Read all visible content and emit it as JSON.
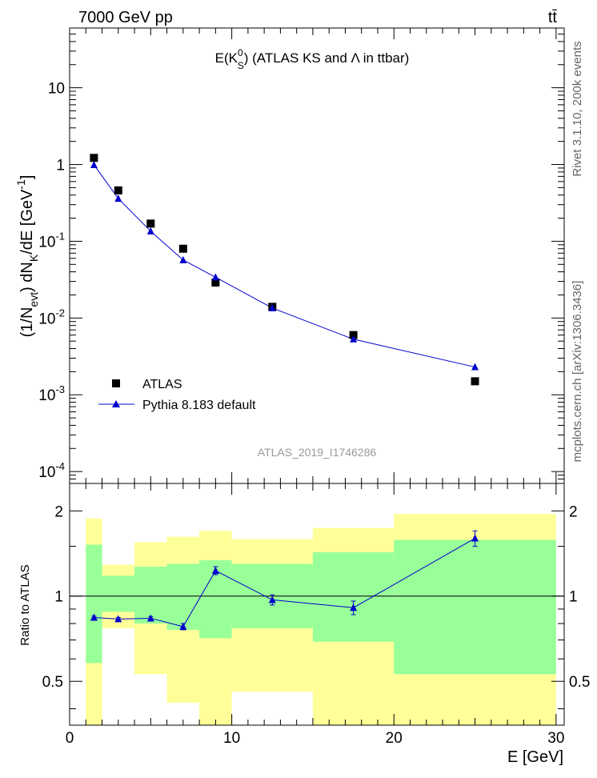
{
  "header": {
    "energy_label": "7000 GeV pp",
    "process_label": "tt̄"
  },
  "side_labels": {
    "rivet": "Rivet 3.1.10, 200k events",
    "mcplots": "mcplots.cern.ch [arXiv:1306.3436]"
  },
  "chart_data": [
    {
      "type": "scatter",
      "title_parts": {
        "pre": "E(K",
        "sup": "0",
        "sub": "S",
        "post": ") (ATLAS KS and Λ in ttbar)"
      },
      "ylabel_parts": {
        "pre": "(1/N",
        "sub1": "evt",
        "mid": ") dN",
        "sub2": "K",
        "post": "/dE [GeV",
        "sup": "-1",
        "end": "]"
      },
      "analysis_id": "ATLAS_2019_I1746286",
      "x_range": [
        0,
        30.5
      ],
      "y_scale": "log",
      "y_range": [
        7e-05,
        60
      ],
      "y_ticks": [
        {
          "value": 0.0001,
          "base": "10",
          "exp": "-4"
        },
        {
          "value": 0.001,
          "base": "10",
          "exp": "-3"
        },
        {
          "value": 0.01,
          "base": "10",
          "exp": "-2"
        },
        {
          "value": 0.1,
          "base": "10",
          "exp": "-1"
        },
        {
          "value": 1,
          "base": "1",
          "exp": ""
        },
        {
          "value": 10,
          "base": "10",
          "exp": ""
        }
      ],
      "legend_position": "bottom-left",
      "series": [
        {
          "name": "ATLAS",
          "marker": "square",
          "color": "#000000",
          "x": [
            1.5,
            3,
            5,
            7,
            9,
            12.5,
            17.5,
            25
          ],
          "y": [
            1.22,
            0.46,
            0.17,
            0.08,
            0.029,
            0.014,
            0.006,
            0.0015
          ]
        },
        {
          "name": "Pythia 8.183 default",
          "marker": "triangle",
          "color": "#0000cc",
          "x": [
            1.5,
            3,
            5,
            7,
            9,
            12.5,
            17.5,
            25
          ],
          "y": [
            0.99,
            0.36,
            0.135,
            0.057,
            0.034,
            0.0135,
            0.0053,
            0.0023
          ]
        }
      ]
    },
    {
      "type": "line",
      "ylabel": "Ratio to ATLAS",
      "xlabel": "E [GeV]",
      "x_range": [
        0,
        30.5
      ],
      "y_scale": "log",
      "y_range": [
        0.35,
        2.5
      ],
      "y_ticks": [
        {
          "value": 0.5,
          "label": "0.5"
        },
        {
          "value": 1,
          "label": "1"
        },
        {
          "value": 2,
          "label": "2"
        }
      ],
      "x_ticks": [
        {
          "value": 0,
          "label": "0"
        },
        {
          "value": 10,
          "label": "10"
        },
        {
          "value": 20,
          "label": "20"
        },
        {
          "value": 30,
          "label": "30"
        }
      ],
      "bands": [
        {
          "x0": 1,
          "x1": 2,
          "yellow": [
            0.34,
            1.88
          ],
          "green": [
            0.58,
            1.52
          ]
        },
        {
          "x0": 2,
          "x1": 4,
          "yellow": [
            0.77,
            1.29
          ],
          "green": [
            0.88,
            1.18
          ]
        },
        {
          "x0": 4,
          "x1": 6,
          "yellow": [
            0.53,
            1.55
          ],
          "green": [
            0.8,
            1.27
          ]
        },
        {
          "x0": 6,
          "x1": 8,
          "yellow": [
            0.42,
            1.62
          ],
          "green": [
            0.76,
            1.3
          ]
        },
        {
          "x0": 8,
          "x1": 10,
          "yellow": [
            0.34,
            1.7
          ],
          "green": [
            0.71,
            1.34
          ]
        },
        {
          "x0": 10,
          "x1": 15,
          "yellow": [
            0.46,
            1.59
          ],
          "green": [
            0.77,
            1.3
          ]
        },
        {
          "x0": 15,
          "x1": 20,
          "yellow": [
            0.34,
            1.74
          ],
          "green": [
            0.69,
            1.43
          ]
        },
        {
          "x0": 20,
          "x1": 30,
          "yellow": [
            0.34,
            1.95
          ],
          "green": [
            0.53,
            1.58
          ]
        }
      ],
      "series": [
        {
          "name": "Pythia 8.183 default",
          "color": "#0000cc",
          "x": [
            1.5,
            3,
            5,
            7,
            9,
            12.5,
            17.5,
            25
          ],
          "y": [
            0.84,
            0.83,
            0.835,
            0.78,
            1.23,
            0.97,
            0.91,
            1.6
          ],
          "err": [
            0.01,
            0.01,
            0.012,
            0.02,
            0.04,
            0.04,
            0.05,
            0.1
          ]
        }
      ],
      "reference_line": 1
    }
  ]
}
